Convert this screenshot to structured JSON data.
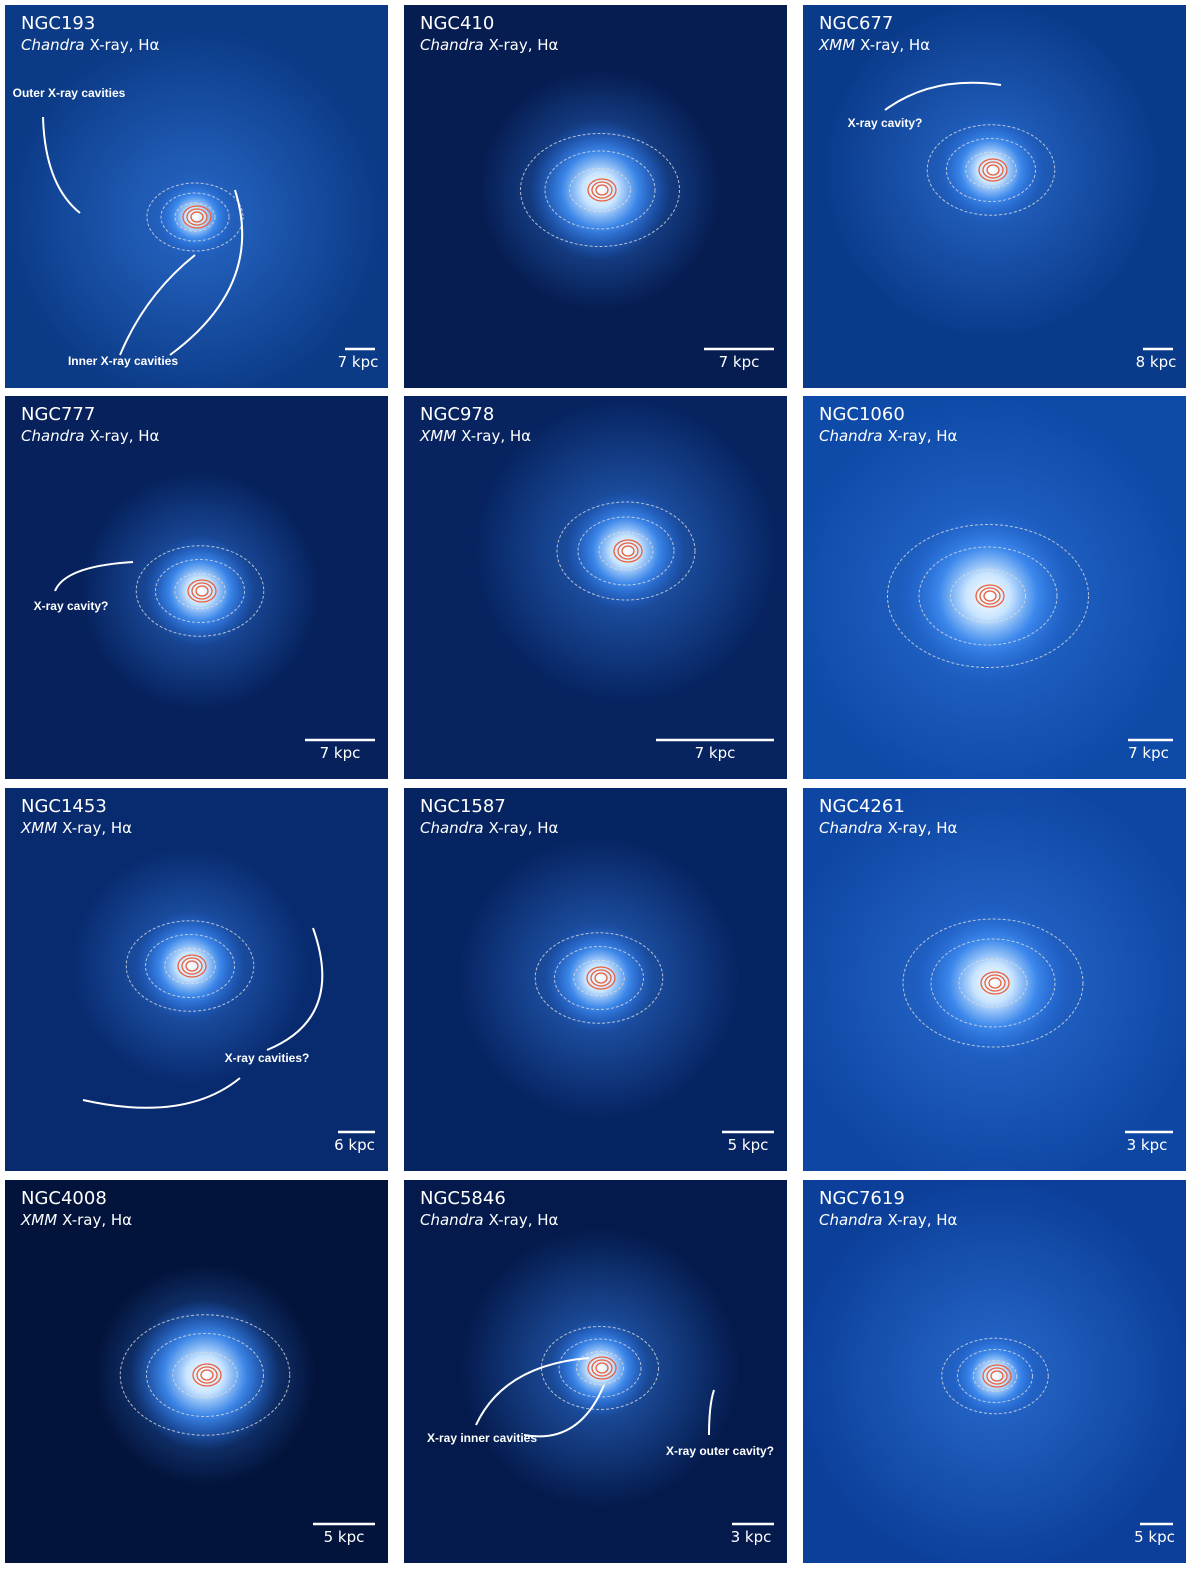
{
  "panels": [
    {
      "name": "NGC193",
      "instrument": "Chandra",
      "bands": "X-ray, Hα",
      "scale": "7 kpc",
      "annotations": [
        "Outer X-ray cavities",
        "Inner X-ray cavities"
      ]
    },
    {
      "name": "NGC410",
      "instrument": "Chandra",
      "bands": "X-ray, Hα",
      "scale": "7 kpc",
      "annotations": []
    },
    {
      "name": "NGC677",
      "instrument": "XMM",
      "bands": "X-ray, Hα",
      "scale": "8 kpc",
      "annotations": [
        "X-ray cavity?"
      ]
    },
    {
      "name": "NGC777",
      "instrument": "Chandra",
      "bands": "X-ray, Hα",
      "scale": "7 kpc",
      "annotations": [
        "X-ray cavity?"
      ]
    },
    {
      "name": "NGC978",
      "instrument": "XMM",
      "bands": "X-ray, Hα",
      "scale": "7 kpc",
      "annotations": []
    },
    {
      "name": "NGC1060",
      "instrument": "Chandra",
      "bands": "X-ray, Hα",
      "scale": "7 kpc",
      "annotations": []
    },
    {
      "name": "NGC1453",
      "instrument": "XMM",
      "bands": "X-ray, Hα",
      "scale": "6 kpc",
      "annotations": [
        "X-ray cavities?"
      ]
    },
    {
      "name": "NGC1587",
      "instrument": "Chandra",
      "bands": "X-ray, Hα",
      "scale": "5 kpc",
      "annotations": []
    },
    {
      "name": "NGC4261",
      "instrument": "Chandra",
      "bands": "X-ray, Hα",
      "scale": "3 kpc",
      "annotations": []
    },
    {
      "name": "NGC4008",
      "instrument": "XMM",
      "bands": "X-ray, Hα",
      "scale": "5 kpc",
      "annotations": []
    },
    {
      "name": "NGC5846",
      "instrument": "Chandra",
      "bands": "X-ray, Hα",
      "scale": "3 kpc",
      "annotations": [
        "X-ray inner cavities",
        "X-ray outer cavity?"
      ]
    },
    {
      "name": "NGC7619",
      "instrument": "Chandra",
      "bands": "X-ray, Hα",
      "scale": "5 kpc",
      "annotations": []
    }
  ]
}
